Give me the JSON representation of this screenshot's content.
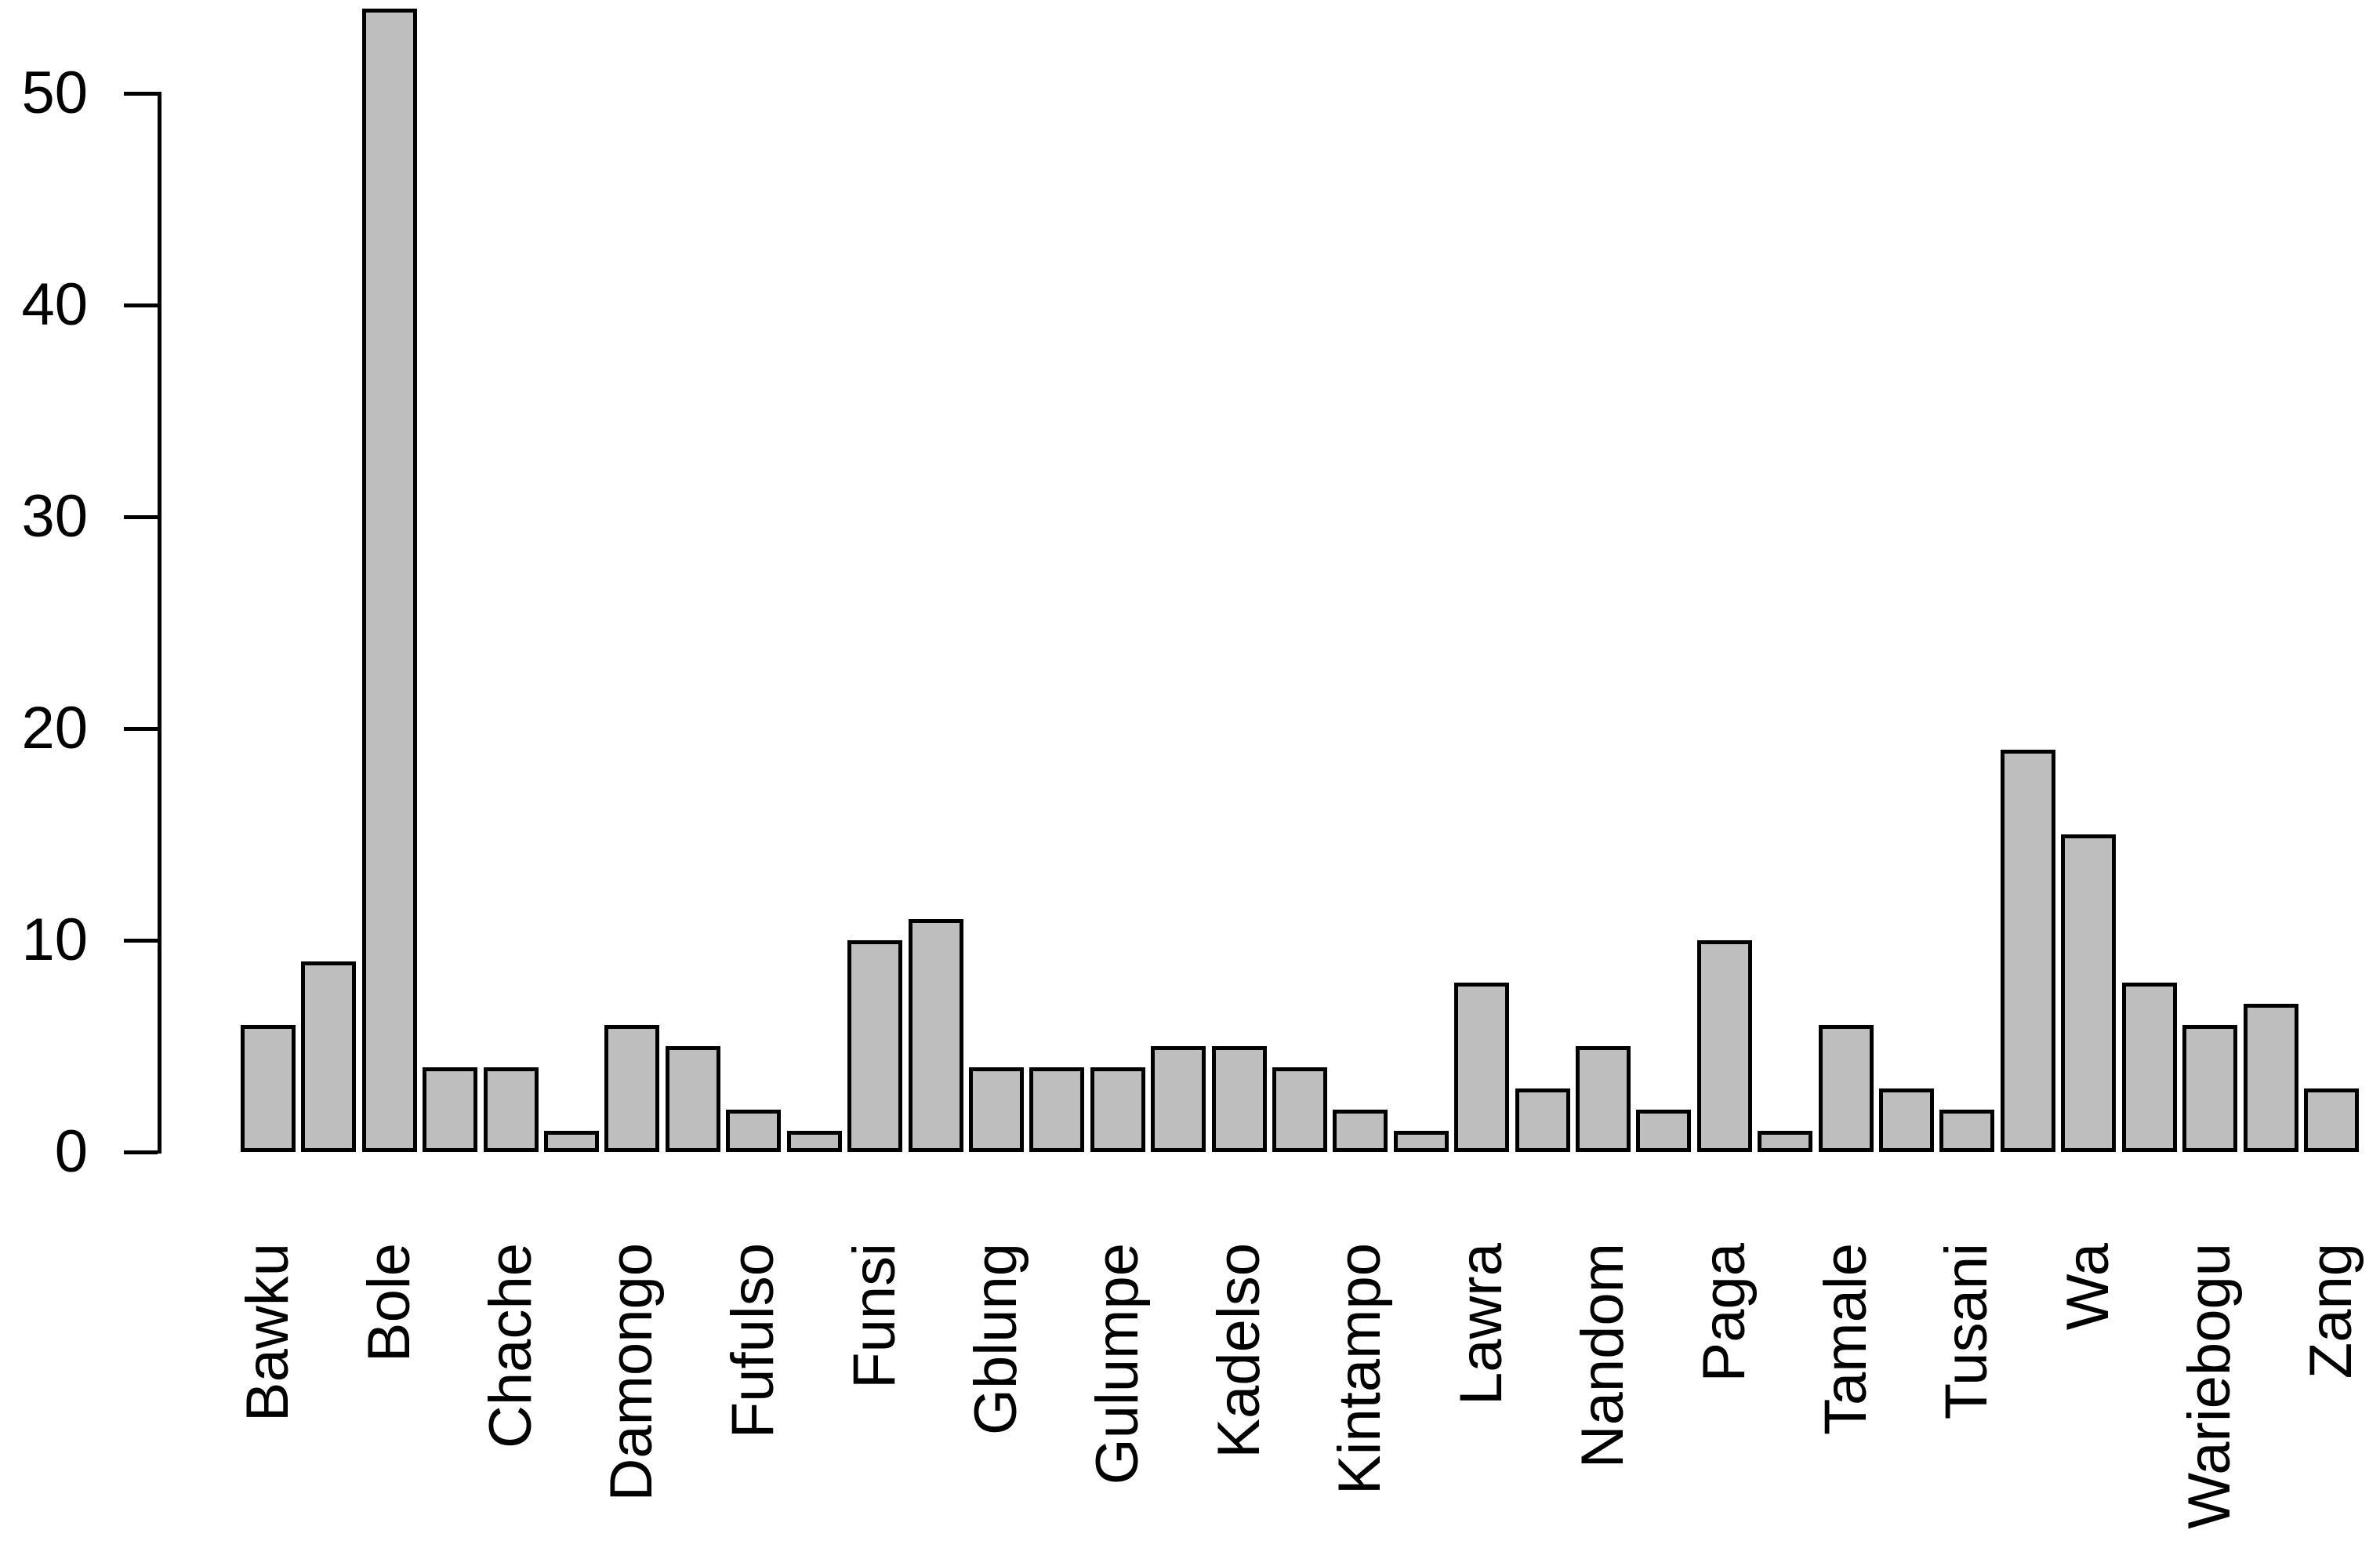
{
  "chart_data": {
    "type": "bar",
    "title": "",
    "xlabel": "",
    "ylabel": "",
    "categories": [
      "Bawku",
      "",
      "Bole",
      "",
      "Chache",
      "",
      "Damongo",
      "",
      "Fufulso",
      "",
      "Funsi",
      "",
      "Gblung",
      "",
      "Gulumpe",
      "",
      "Kadelso",
      "",
      "Kintampo",
      "",
      "Lawra",
      "",
      "Nandom",
      "",
      "Paga",
      "",
      "Tamale",
      "",
      "Tusani",
      "",
      "Wa",
      "",
      "Wariebogu",
      "",
      "Zang"
    ],
    "values": [
      6,
      9,
      54,
      4,
      4,
      1,
      6,
      5,
      2,
      1,
      10,
      11,
      4,
      4,
      4,
      5,
      5,
      4,
      2,
      1,
      8,
      3,
      5,
      2,
      10,
      1,
      6,
      3,
      2,
      19,
      15,
      8,
      6,
      7,
      3
    ],
    "labeled_bars": [
      {
        "label": "Bawku",
        "value": 6
      },
      {
        "label": "Bole",
        "value": 54
      },
      {
        "label": "Chache",
        "value": 4
      },
      {
        "label": "Damongo",
        "value": 6
      },
      {
        "label": "Fufulso",
        "value": 2
      },
      {
        "label": "Funsi",
        "value": 10
      },
      {
        "label": "Gblung",
        "value": 4
      },
      {
        "label": "Gulumpe",
        "value": 4
      },
      {
        "label": "Kadelso",
        "value": 5
      },
      {
        "label": "Kintampo",
        "value": 2
      },
      {
        "label": "Lawra",
        "value": 8
      },
      {
        "label": "Nandom",
        "value": 5
      },
      {
        "label": "Paga",
        "value": 10
      },
      {
        "label": "Tamale",
        "value": 6
      },
      {
        "label": "Tusani",
        "value": 2
      },
      {
        "label": "Wa",
        "value": 15
      },
      {
        "label": "Wariebogu",
        "value": 6
      },
      {
        "label": "Zang",
        "value": 3
      }
    ],
    "yticks": [
      0,
      10,
      20,
      30,
      40,
      50
    ],
    "ylim": [
      0,
      54
    ],
    "grid": false,
    "legend_position": "none",
    "bar_fill_color": "#bebebe",
    "bar_border_color": "#000000",
    "axis_color": "#000000",
    "text_color": "#000000",
    "background_color": "#ffffff"
  }
}
